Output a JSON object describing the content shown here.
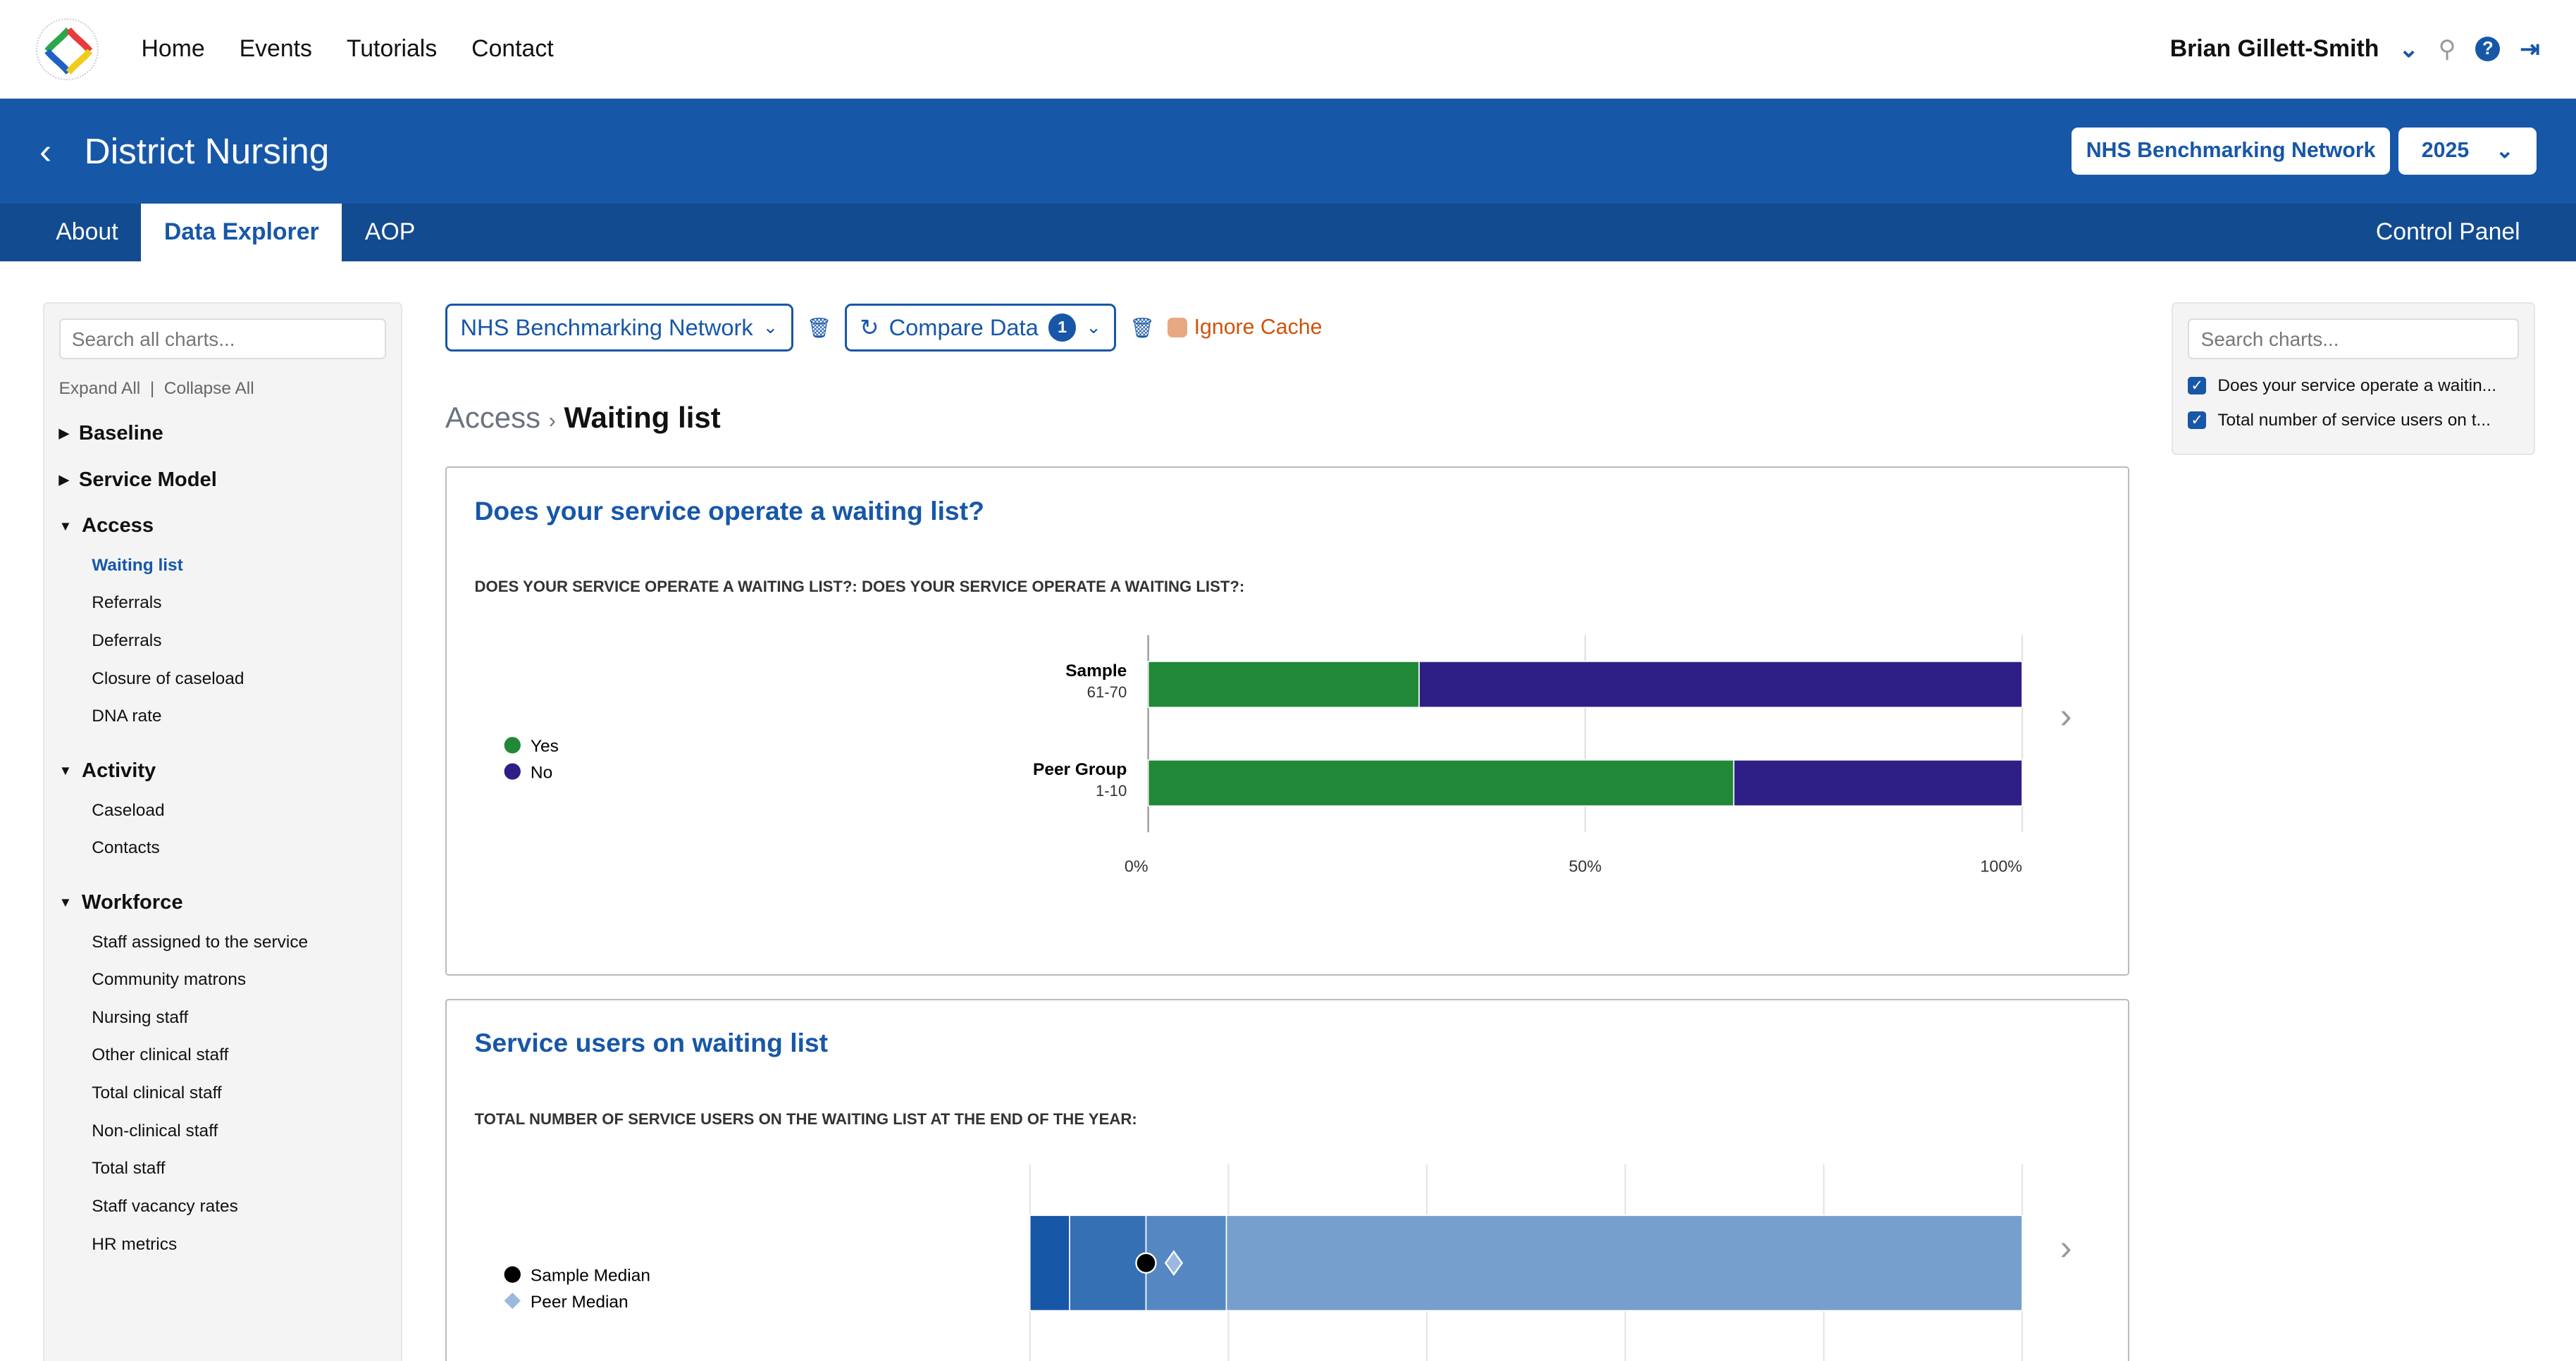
{
  "nav": {
    "items": [
      "Home",
      "Events",
      "Tutorials",
      "Contact"
    ],
    "user": "Brian Gillett-Smith"
  },
  "header": {
    "title": "District Nursing",
    "org_button": "NHS Benchmarking Network",
    "year": "2025"
  },
  "tabs": [
    "About",
    "Data Explorer",
    "AOP"
  ],
  "active_tab": "Data Explorer",
  "control_panel": "Control Panel",
  "sidebar": {
    "search_placeholder": "Search all charts...",
    "expand": "Expand All",
    "collapse": "Collapse All",
    "sections": [
      {
        "label": "Baseline",
        "open": false,
        "items": []
      },
      {
        "label": "Service Model",
        "open": false,
        "items": []
      },
      {
        "label": "Access",
        "open": true,
        "items": [
          "Waiting list",
          "Referrals",
          "Deferrals",
          "Closure of caseload",
          "DNA rate"
        ]
      },
      {
        "label": "Activity",
        "open": true,
        "items": [
          "Caseload",
          "Contacts"
        ]
      },
      {
        "label": "Workforce",
        "open": true,
        "items": [
          "Staff assigned to the service",
          "Community matrons",
          "Nursing staff",
          "Other clinical staff",
          "Total clinical staff",
          "Non-clinical staff",
          "Total staff",
          "Staff vacancy rates",
          "HR metrics"
        ]
      }
    ],
    "active_item": "Waiting list"
  },
  "toolbar": {
    "network": "NHS Benchmarking Network",
    "compare": "Compare Data",
    "compare_count": "1",
    "ignore_cache": "Ignore Cache"
  },
  "breadcrumb": {
    "parent": "Access",
    "current": "Waiting list"
  },
  "right_panel": {
    "search_placeholder": "Search charts...",
    "charts": [
      {
        "label": "Does your service operate a waitin...",
        "checked": true
      },
      {
        "label": "Total number of service users on t...",
        "checked": true
      }
    ]
  },
  "colors": {
    "brand": "#1757a8",
    "yes": "#218838",
    "no": "#2e1f87",
    "warning": "#d0530b"
  },
  "chart_data": [
    {
      "type": "bar",
      "stacked": true,
      "orientation": "horizontal",
      "title": "Does your service operate a waiting list?",
      "subtitle": "DOES YOUR SERVICE OPERATE A WAITING LIST?: DOES YOUR SERVICE OPERATE A WAITING LIST?:",
      "categories": [
        {
          "name": "Sample",
          "range": "61-70"
        },
        {
          "name": "Peer Group",
          "range": "1-10"
        }
      ],
      "series": [
        {
          "name": "Yes",
          "color": "#218838",
          "values": [
            31,
            67
          ]
        },
        {
          "name": "No",
          "color": "#2e1f87",
          "values": [
            69,
            33
          ]
        }
      ],
      "xticks": [
        "0%",
        "50%",
        "100%"
      ],
      "xlim": [
        0,
        100
      ],
      "legend": "left"
    },
    {
      "type": "bar",
      "title": "Service users on waiting list",
      "subtitle": "TOTAL NUMBER OF SERVICE USERS ON THE WAITING LIST AT THE END OF THE YEAR:",
      "bands": [
        {
          "from": 0,
          "to": 4,
          "color": "#1757a8"
        },
        {
          "from": 4,
          "to": 11.7,
          "color": "#3670b4"
        },
        {
          "from": 11.7,
          "to": 19.8,
          "color": "#5588c2"
        },
        {
          "from": 19.8,
          "to": 100,
          "color": "#779fcd"
        }
      ],
      "markers": [
        {
          "name": "Sample Median",
          "value": 11.7,
          "shape": "circle"
        },
        {
          "name": "Peer Median",
          "value": 14.5,
          "shape": "diamond"
        }
      ],
      "xlim": [
        0,
        100
      ],
      "legend": "left"
    }
  ]
}
